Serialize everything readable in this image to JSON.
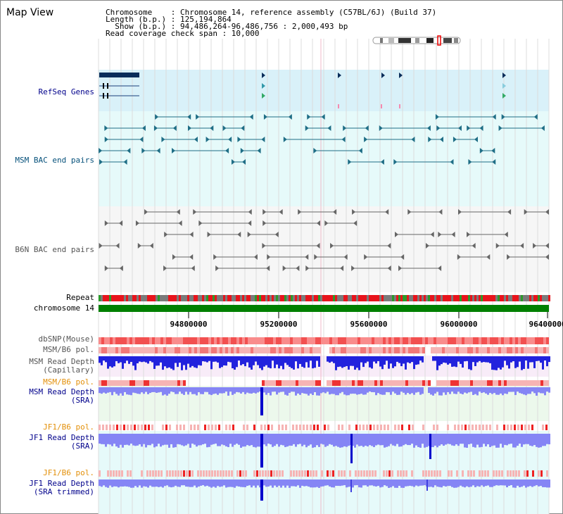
{
  "page": {
    "title": "Map View"
  },
  "header": {
    "chromosome": "Chromosome    : Chromosome 14, reference assembly (C57BL/6J) (Build 37)",
    "length": "Length (b.p.) : 125,194,864",
    "show": "  Show (b.p.) : 94,486,264-96,486,756 : 2,000,493 bp",
    "coverage": "Read coverage check span : 10,000"
  },
  "tracks": {
    "refseq": "RefSeq Genes",
    "msm_bac": "MSM BAC end pairs",
    "b6n_bac": "B6N BAC end pairs",
    "repeat": "Repeat",
    "chromosome": "chromosome 14",
    "dbsnp": "dbSNP(Mouse)",
    "msm_b6_pol": "MSM/B6 pol.",
    "msm_depth_cap_1": "MSM Read Depth",
    "msm_depth_cap_2": "(Capillary)",
    "msm_b6_pol_2": "MSM/B6 pol.",
    "msm_depth_sra_1": "MSM Read Depth",
    "msm_depth_sra_2": "(SRA)",
    "jf1_b6_pol": "JF1/B6 pol.",
    "jf1_depth_sra_1": "JF1 Read Depth",
    "jf1_depth_sra_2": "(SRA)",
    "jf1_b6_pol_2": "JF1/B6 pol.",
    "jf1_depth_trim_1": "JF1 Read Depth",
    "jf1_depth_trim_2": "(SRA trimmed)"
  },
  "axis": {
    "ticks": [
      "94800000",
      "95200000",
      "95600000",
      "96000000",
      "96400000"
    ]
  },
  "colors": {
    "refseq_band": "#d9f1f9",
    "msm_bac_band": "#e6fafa",
    "b6n_bac_band": "#f6f6f6",
    "msm_feature": "#1f6e86",
    "b6n_feature": "#666666",
    "repeat_red": "#e8141c",
    "repeat_gray": "#7b7b7b",
    "chromosome": "#008000",
    "snp_red": "#f25050",
    "pol_pink": "#f6b4b4",
    "depth_blue": "#2222dd",
    "depth_light": "#8585f5",
    "depth_deep": "#0000cc",
    "depth_bg_pink": "#f8ecf8",
    "depth_bg_green": "#ecf8ec",
    "depth_bg_cyan": "#e6fafa"
  }
}
